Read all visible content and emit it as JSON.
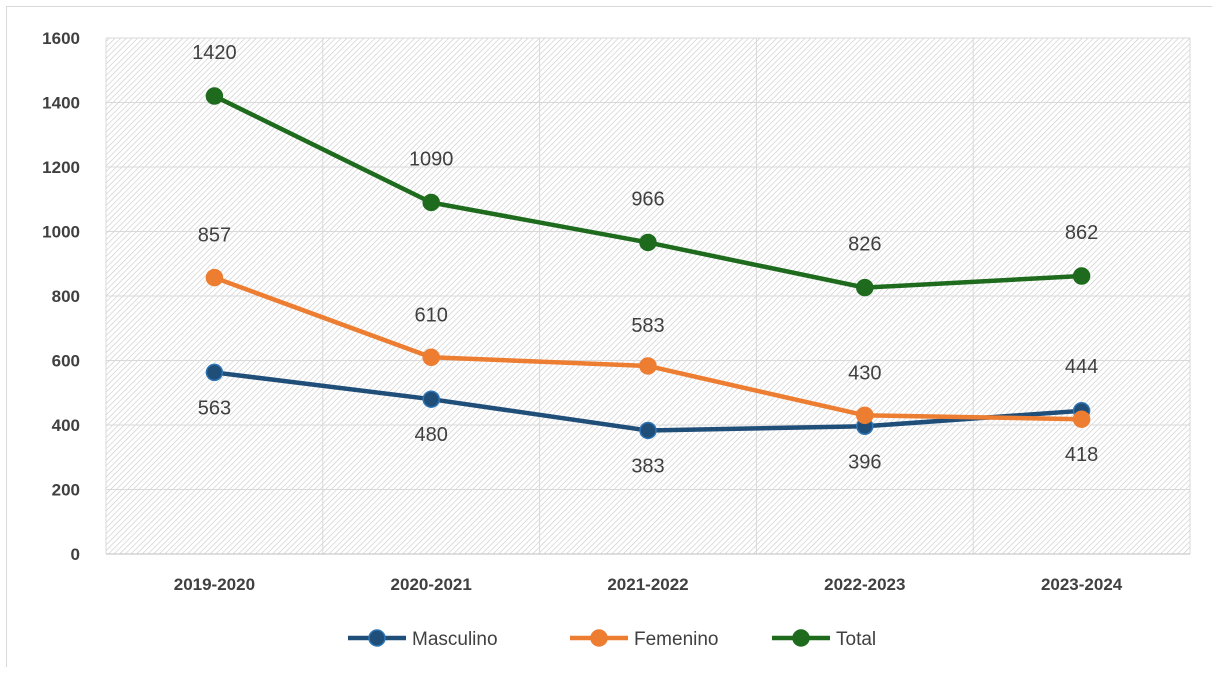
{
  "chart_data": {
    "type": "line",
    "categories": [
      "2019-2020",
      "2020-2021",
      "2021-2022",
      "2022-2023",
      "2023-2024"
    ],
    "series": [
      {
        "name": "Masculino",
        "values": [
          563,
          480,
          383,
          396,
          444
        ],
        "color": "#1f4e79"
      },
      {
        "name": "Femenino",
        "values": [
          857,
          610,
          583,
          430,
          418
        ],
        "color": "#ed7d31"
      },
      {
        "name": "Total",
        "values": [
          1420,
          1090,
          966,
          826,
          862
        ],
        "color": "#1e6b1e"
      }
    ],
    "yticks": [
      "0",
      "200",
      "400",
      "600",
      "800",
      "1000",
      "1200",
      "1400",
      "1600"
    ],
    "ylim": [
      0,
      1600
    ],
    "grid": true,
    "legend_position": "bottom"
  }
}
